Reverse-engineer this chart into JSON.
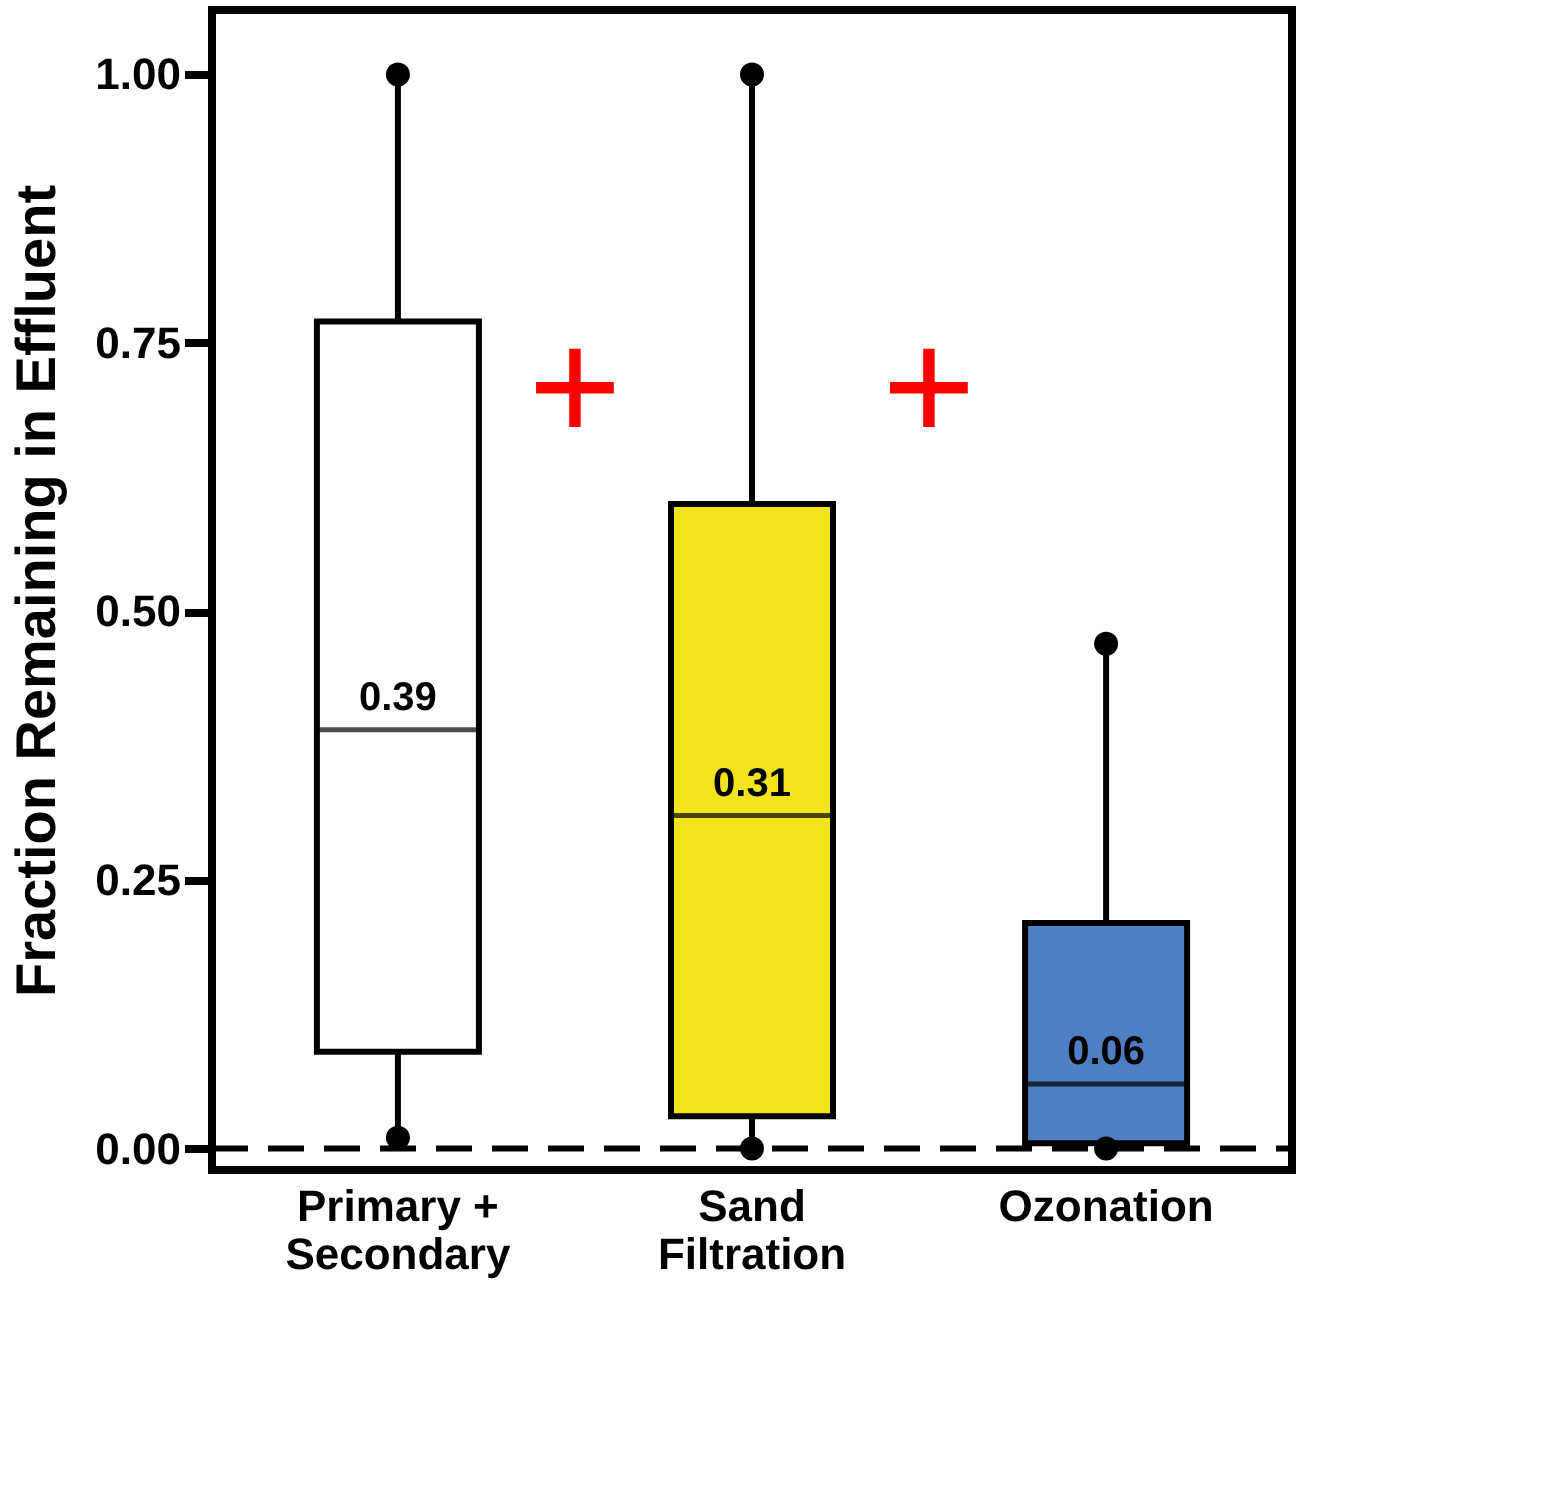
{
  "chart_data": {
    "type": "box",
    "ylabel": "Fraction Remaining in Effluent",
    "categories": [
      "Primary + Secondary",
      "Sand Filtration",
      "Ozonation"
    ],
    "boxes": [
      {
        "low": 0.01,
        "q1": 0.09,
        "median": 0.39,
        "q3": 0.77,
        "high": 1.0
      },
      {
        "low": 0.0,
        "q1": 0.03,
        "median": 0.31,
        "q3": 0.6,
        "high": 1.0
      },
      {
        "low": 0.0,
        "q1": 0.005,
        "median": 0.06,
        "q3": 0.21,
        "high": 0.47
      }
    ],
    "colors": [
      "#ffffff",
      "#f2e41c",
      "#4f7fc2"
    ],
    "value_labels": [
      "0.39",
      "0.31",
      "0.06"
    ],
    "ylim": [
      -0.02,
      1.06
    ],
    "yticks": [
      {
        "value": 0,
        "label": "0.00"
      },
      {
        "value": 0.25,
        "label": "0.25"
      },
      {
        "value": 0.5,
        "label": "0.50"
      },
      {
        "value": 0.75,
        "label": "0.75"
      },
      {
        "value": 1,
        "label": "1.00"
      }
    ],
    "ref_lines": [
      {
        "axis": "y",
        "value": 0,
        "line_style": "dashed",
        "color": "#000000"
      }
    ],
    "annotations": [
      "+",
      "+"
    ],
    "grid": false
  }
}
